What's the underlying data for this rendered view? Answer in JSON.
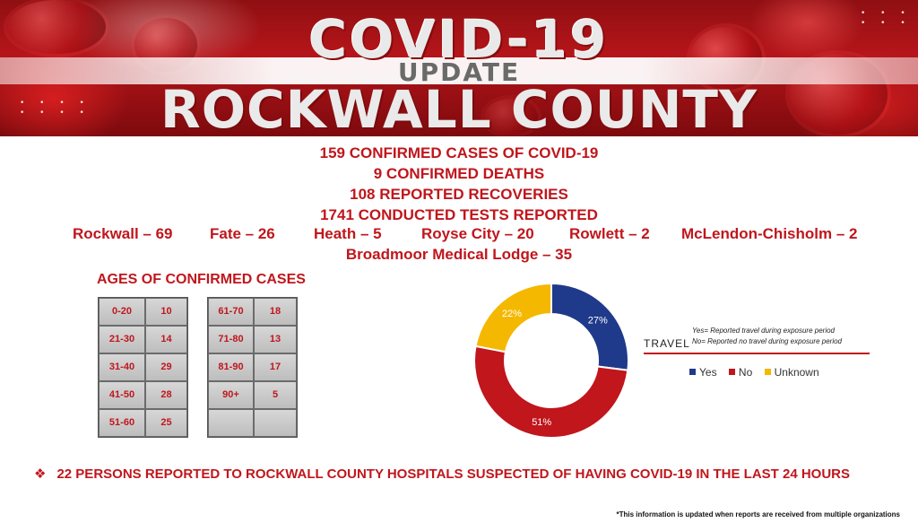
{
  "header": {
    "line1": "COVID-19",
    "line2": "UPDATE",
    "line3": "ROCKWALL COUNTY"
  },
  "stats": {
    "cases": "159 CONFIRMED CASES OF COVID-19",
    "deaths": "9 CONFIRMED DEATHS",
    "recoveries": "108 REPORTED RECOVERIES",
    "tests": "1741 CONDUCTED TESTS REPORTED"
  },
  "towns": [
    "Rockwall – 69",
    "Fate – 26",
    "Heath – 5",
    "Royse City – 20",
    "Rowlett – 2",
    "McLendon-Chisholm – 2"
  ],
  "facility": "Broadmoor Medical Lodge – 35",
  "ages": {
    "title": "AGES OF CONFIRMED CASES",
    "left": [
      {
        "range": "0-20",
        "count": "10"
      },
      {
        "range": "21-30",
        "count": "14"
      },
      {
        "range": "31-40",
        "count": "29"
      },
      {
        "range": "41-50",
        "count": "28"
      },
      {
        "range": "51-60",
        "count": "25"
      }
    ],
    "right": [
      {
        "range": "61-70",
        "count": "18"
      },
      {
        "range": "71-80",
        "count": "13"
      },
      {
        "range": "81-90",
        "count": "17"
      },
      {
        "range": "90+",
        "count": "5"
      },
      {
        "range": "",
        "count": ""
      }
    ]
  },
  "travel": {
    "label": "TRAVEL",
    "note_yes": "Yes= Reported travel during exposure period",
    "note_no": "No= Reported no travel during exposure period",
    "legend": [
      {
        "label": "Yes",
        "color": "#1f3a8a"
      },
      {
        "label": "No",
        "color": "#c0161c"
      },
      {
        "label": "Unknown",
        "color": "#f5b800"
      }
    ],
    "chart_data": {
      "type": "pie",
      "categories": [
        "Yes",
        "No",
        "Unknown"
      ],
      "values": [
        27,
        51,
        22
      ],
      "value_labels": [
        "27%",
        "51%",
        "22%"
      ],
      "colors": [
        "#1f3a8a",
        "#c0161c",
        "#f5b800"
      ]
    }
  },
  "hospital_line": "22 PERSONS REPORTED TO ROCKWALL COUNTY HOSPITALS SUSPECTED OF HAVING COVID-19 IN THE LAST 24 HOURS",
  "footnote": "*This information is updated when reports are received from multiple organizations"
}
